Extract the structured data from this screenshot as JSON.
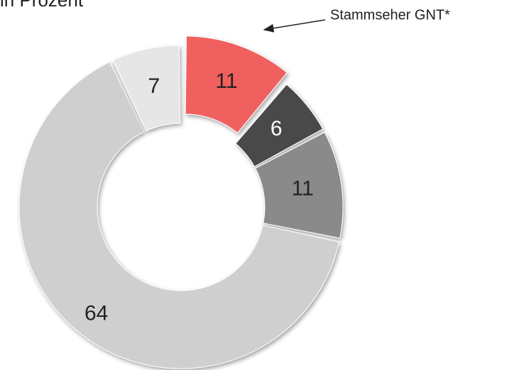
{
  "chart_data": {
    "type": "donut",
    "title": "in Prozent",
    "annotation": "Stammseher GNT*",
    "categories": [
      null,
      null,
      null,
      null,
      null
    ],
    "values": [
      11,
      6,
      11,
      64,
      7
    ],
    "colors": [
      "#f0605f",
      "#4a4a4a",
      "#8a8a8a",
      "#cfcfcf",
      "#e6e6e6"
    ]
  }
}
